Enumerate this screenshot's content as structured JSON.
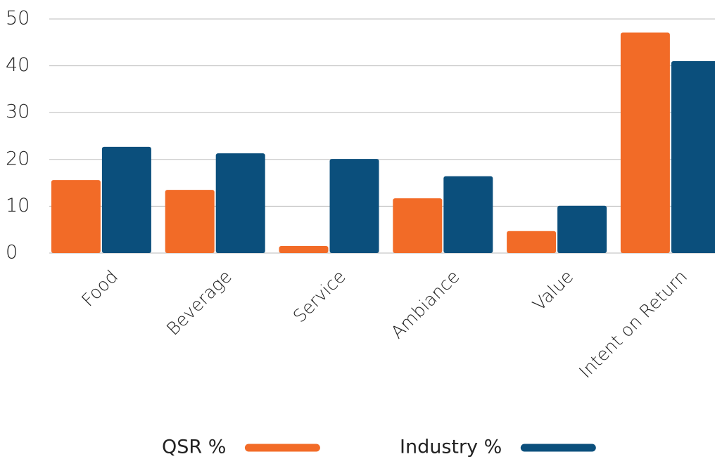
{
  "chart_data": {
    "type": "bar",
    "categories": [
      "Food",
      "Beverage",
      "Service",
      "Ambiance",
      "Value",
      "Intent on Return"
    ],
    "series": [
      {
        "name": "QSR %",
        "color": "#f26b27",
        "values": [
          15.6,
          13.5,
          1.5,
          11.7,
          4.7,
          47.1
        ]
      },
      {
        "name": "Industry %",
        "color": "#0b4f7c",
        "values": [
          22.7,
          21.3,
          20.1,
          16.4,
          10.1,
          41.0
        ]
      }
    ],
    "ylim": [
      0,
      50
    ],
    "yticks": [
      0,
      10,
      20,
      30,
      40,
      50
    ],
    "grid": true,
    "legend": "bottom"
  }
}
